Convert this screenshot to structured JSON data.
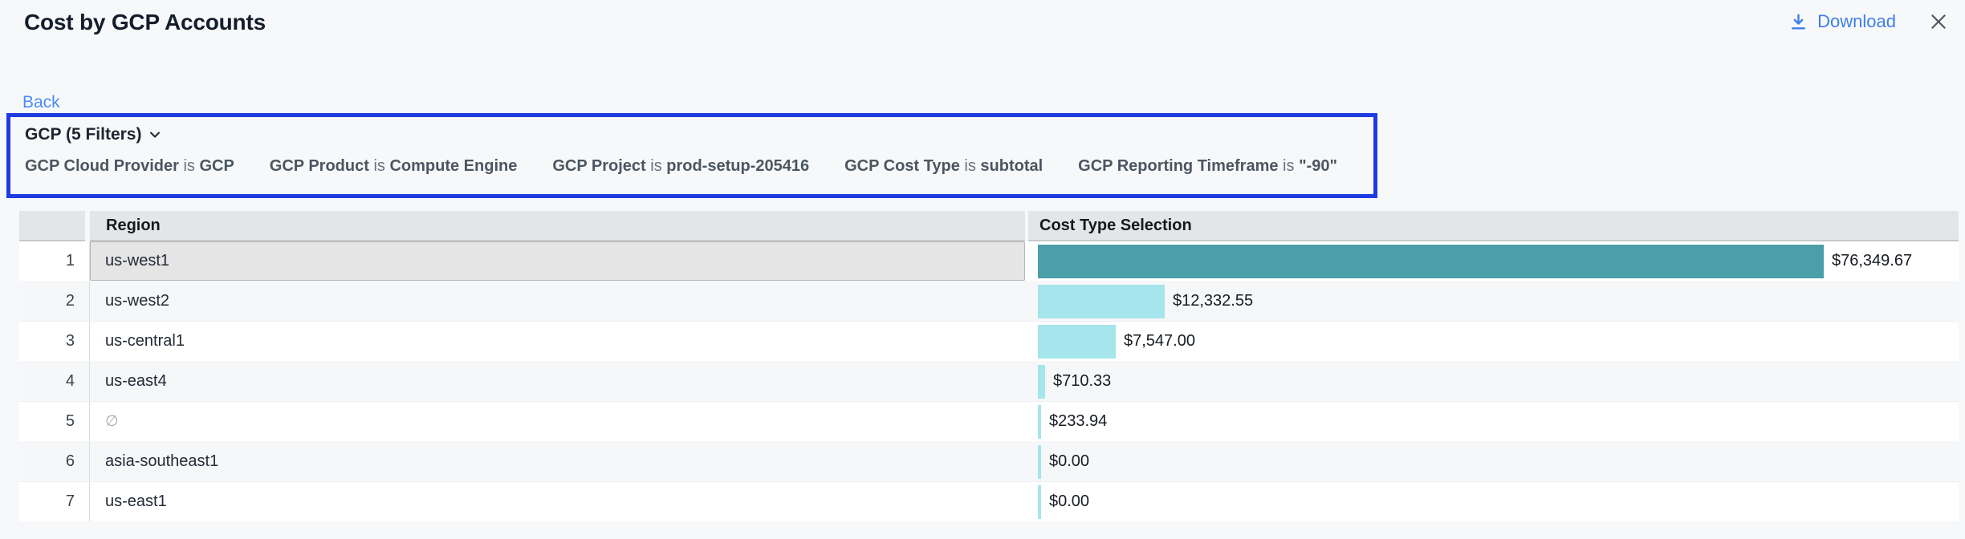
{
  "header": {
    "title": "Cost by GCP Accounts",
    "download_label": "Download"
  },
  "nav": {
    "back_label": "Back"
  },
  "icons": {
    "download": "download-icon (arrow-down-to-line)",
    "close": "close-icon (x)",
    "chevron": "chevron-down-icon"
  },
  "filter_bar": {
    "summary_label": "GCP (5 Filters)",
    "filters": [
      {
        "field": "GCP Cloud Provider",
        "op": "is",
        "value": "GCP"
      },
      {
        "field": "GCP Product",
        "op": "is",
        "value": "Compute Engine"
      },
      {
        "field": "GCP Project",
        "op": "is",
        "value": "prod-setup-205416"
      },
      {
        "field": "GCP Cost Type",
        "op": "is",
        "value": "subtotal"
      },
      {
        "field": "GCP Reporting Timeframe",
        "op": "is",
        "value": "\"-90\""
      }
    ]
  },
  "table": {
    "columns": {
      "region": "Region",
      "cost": "Cost Type Selection"
    },
    "rows": [
      {
        "index": 1,
        "region": "us-west1",
        "value": 76349.67,
        "value_label": "$76,349.67",
        "selected": true
      },
      {
        "index": 2,
        "region": "us-west2",
        "value": 12332.55,
        "value_label": "$12,332.55"
      },
      {
        "index": 3,
        "region": "us-central1",
        "value": 7547.0,
        "value_label": "$7,547.00"
      },
      {
        "index": 4,
        "region": "us-east4",
        "value": 710.33,
        "value_label": "$710.33"
      },
      {
        "index": 5,
        "region": "∅",
        "empty": true,
        "value": 233.94,
        "value_label": "$233.94"
      },
      {
        "index": 6,
        "region": "asia-southeast1",
        "value": 0,
        "value_label": "$0.00"
      },
      {
        "index": 7,
        "region": "us-east1",
        "value": 0,
        "value_label": "$0.00"
      }
    ]
  },
  "chart_data": {
    "type": "bar",
    "title": "Cost by GCP Accounts",
    "categories": [
      "us-west1",
      "us-west2",
      "us-central1",
      "us-east4",
      "∅",
      "asia-southeast1",
      "us-east1"
    ],
    "values": [
      76349.67,
      12332.55,
      7547.0,
      710.33,
      233.94,
      0.0,
      0.0
    ],
    "value_labels": [
      "$76,349.67",
      "$12,332.55",
      "$7,547.00",
      "$710.33",
      "$233.94",
      "$0.00",
      "$0.00"
    ],
    "xlabel": "Cost Type Selection",
    "ylabel": "Region",
    "xlim": [
      0,
      76349.67
    ],
    "orientation": "horizontal",
    "legend": "none",
    "grid": false
  },
  "colors": {
    "accent_blue": "#3e7fe8",
    "filter_border": "#1f3ce0",
    "bar_selected": "#4A9FA8",
    "bar_default": "#A5E5EC",
    "header_bg": "#e3e5e6"
  }
}
